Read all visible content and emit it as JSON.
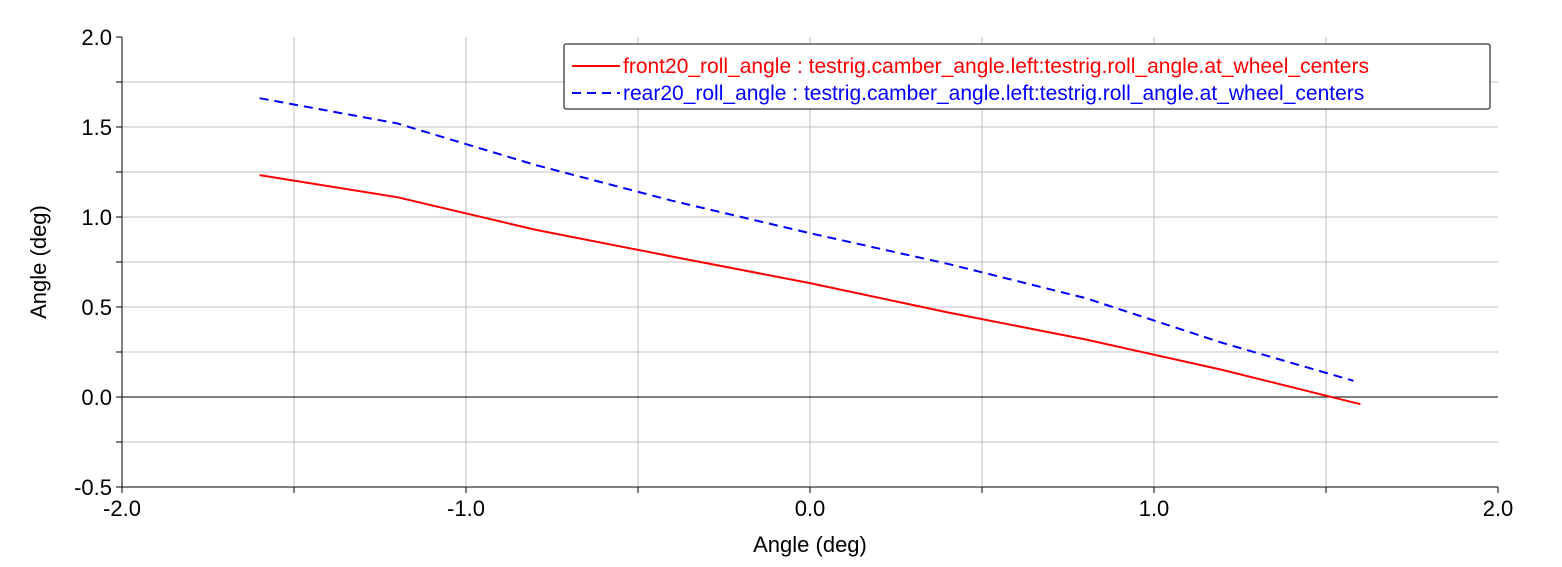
{
  "chart_data": {
    "type": "line",
    "title": "",
    "xlabel": "Angle (deg)",
    "ylabel": "Angle (deg)",
    "xlim": [
      -2.0,
      2.0
    ],
    "ylim": [
      -0.5,
      2.0
    ],
    "xticks": [
      "-2.0",
      "-1.0",
      "0.0",
      "1.0",
      "2.0"
    ],
    "yticks": [
      "-0.5",
      "0.0",
      "0.5",
      "1.0",
      "1.5",
      "2.0"
    ],
    "grid": true,
    "legend_position": "top-right",
    "series": [
      {
        "name": "front20_roll_angle : testrig.camber_angle.left:testrig.roll_angle.at_wheel_centers",
        "color": "#ff0000",
        "dash": "solid",
        "x": [
          -1.6,
          -1.2,
          -0.8,
          -0.4,
          0.0,
          0.4,
          0.8,
          1.2,
          1.6
        ],
        "y": [
          1.233,
          1.11,
          0.93,
          0.78,
          0.633,
          0.47,
          0.32,
          0.15,
          -0.04
        ]
      },
      {
        "name": "rear20_roll_angle : testrig.camber_angle.left:testrig.roll_angle.at_wheel_centers",
        "color": "#0000ff",
        "dash": "dashed",
        "x": [
          -1.6,
          -1.2,
          -0.8,
          -0.4,
          0.0,
          0.4,
          0.8,
          1.2,
          1.58
        ],
        "y": [
          1.66,
          1.52,
          1.29,
          1.09,
          0.91,
          0.74,
          0.55,
          0.3,
          0.09
        ]
      }
    ]
  }
}
